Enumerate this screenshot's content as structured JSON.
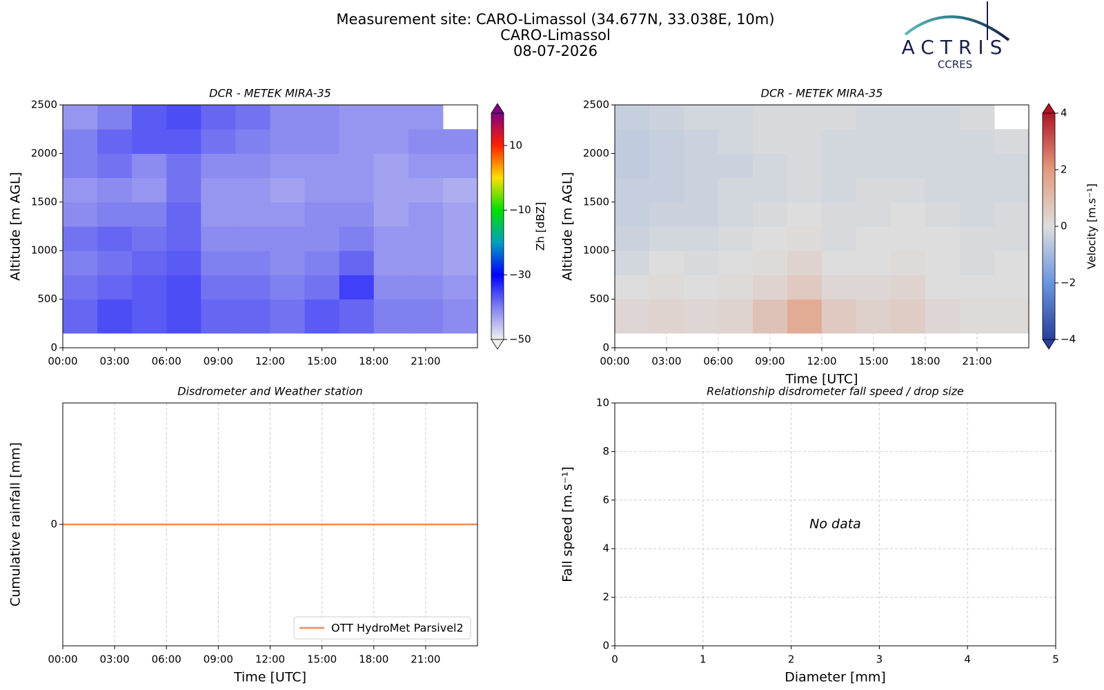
{
  "header": {
    "title": "Measurement site: CARO-Limassol (34.677N, 33.038E, 10m)",
    "site": "CARO-Limassol",
    "date": "08-07-2026"
  },
  "logo": {
    "name": "ACTRIS",
    "subtitle": "CCRES"
  },
  "chart_data": [
    {
      "type": "heatmap",
      "title": "DCR - METEK MIRA-35",
      "y_label": "Altitude [m AGL]",
      "xbins": [
        0,
        2,
        4,
        6,
        8,
        10,
        12,
        14,
        16,
        18,
        20,
        22,
        24
      ],
      "ybins": [
        150,
        500,
        750,
        1000,
        1250,
        1500,
        1750,
        2000,
        2250,
        2500
      ],
      "z": [
        [
          -38,
          -36,
          -37,
          -36,
          -38,
          -38,
          -39,
          -37,
          -38,
          -40,
          -40,
          -41
        ],
        [
          -39,
          -38,
          -37,
          -36,
          -39,
          -39,
          -40,
          -39,
          -35,
          -41,
          -41,
          -42
        ],
        [
          -40,
          -39,
          -38,
          -37,
          -40,
          -40,
          -41,
          -40,
          -38,
          -42,
          -42,
          -43
        ],
        [
          -39,
          -38,
          -39,
          -38,
          -41,
          -41,
          -41,
          -41,
          -40,
          -42,
          -42,
          -43
        ],
        [
          -41,
          -40,
          -40,
          -38,
          -42,
          -42,
          -42,
          -41,
          -41,
          -43,
          -42,
          -43
        ],
        [
          -42,
          -41,
          -42,
          -39,
          -42,
          -42,
          -43,
          -42,
          -42,
          -43,
          -43,
          -44
        ],
        [
          -40,
          -39,
          -41,
          -39,
          -41,
          -41,
          -42,
          -42,
          -42,
          -43,
          -42,
          -42
        ],
        [
          -40,
          -38,
          -37,
          -37,
          -39,
          -40,
          -41,
          -41,
          -42,
          -42,
          -41,
          -41
        ],
        [
          -42,
          -40,
          -37,
          -36,
          -38,
          -39,
          -41,
          -41,
          -42,
          -42,
          -42,
          null
        ]
      ],
      "xlim": [
        0,
        24
      ],
      "ylim": [
        0,
        2500
      ],
      "xticks": [
        {
          "value": 0,
          "label": "00:00"
        },
        {
          "value": 3,
          "label": "03:00"
        },
        {
          "value": 6,
          "label": "06:00"
        },
        {
          "value": 9,
          "label": "09:00"
        },
        {
          "value": 12,
          "label": "12:00"
        },
        {
          "value": 15,
          "label": "15:00"
        },
        {
          "value": 18,
          "label": "18:00"
        },
        {
          "value": 21,
          "label": "21:00"
        }
      ],
      "yticks": [
        0,
        500,
        1000,
        1500,
        2000,
        2500
      ],
      "colorbar_label": "Zh [dBZ]",
      "clim": [
        -50,
        20
      ],
      "colorbar_ticks": [
        {
          "value": -50,
          "label": "−50"
        },
        {
          "value": -30,
          "label": "−30"
        },
        {
          "value": -10,
          "label": "−10"
        },
        10
      ],
      "colorscale": [
        "#f0f0f0",
        "#8080f0",
        "#0000ff",
        "#00a0c0",
        "#00e000",
        "#ffe000",
        "#ff2000",
        "#800080"
      ]
    },
    {
      "type": "heatmap",
      "title": "DCR - METEK MIRA-35",
      "x_label": "Time [UTC]",
      "y_label": "Altitude [m AGL]",
      "xbins": [
        0,
        2,
        4,
        6,
        8,
        10,
        12,
        14,
        16,
        18,
        20,
        22,
        24
      ],
      "ybins": [
        150,
        500,
        750,
        1000,
        1250,
        1500,
        1750,
        2000,
        2250,
        2500
      ],
      "z": [
        [
          0.2,
          0.3,
          0.2,
          0.3,
          0.8,
          1.5,
          0.6,
          0.4,
          0.5,
          0.2,
          0.1,
          0.1
        ],
        [
          0,
          0.1,
          0,
          0.1,
          0.3,
          0.6,
          0.2,
          0.2,
          0.3,
          0,
          0,
          0
        ],
        [
          -0.2,
          0,
          -0.1,
          0,
          0.1,
          0.3,
          0,
          0,
          0.1,
          0,
          -0.1,
          0
        ],
        [
          -0.3,
          -0.2,
          -0.2,
          -0.1,
          0,
          0.1,
          -0.1,
          0,
          0,
          0,
          -0.1,
          -0.1
        ],
        [
          -0.4,
          -0.3,
          -0.3,
          -0.2,
          -0.1,
          0,
          -0.1,
          -0.1,
          0,
          -0.1,
          -0.2,
          -0.1
        ],
        [
          -0.4,
          -0.4,
          -0.3,
          -0.2,
          -0.2,
          -0.1,
          -0.2,
          -0.1,
          -0.1,
          -0.2,
          -0.2,
          -0.2
        ],
        [
          -0.5,
          -0.4,
          -0.3,
          -0.3,
          -0.2,
          -0.1,
          -0.2,
          -0.2,
          -0.2,
          -0.2,
          -0.2,
          -0.2
        ],
        [
          -0.5,
          -0.4,
          -0.3,
          -0.2,
          -0.1,
          -0.1,
          -0.2,
          -0.2,
          -0.2,
          -0.2,
          -0.2,
          -0.1
        ],
        [
          -0.4,
          -0.3,
          -0.2,
          -0.2,
          -0.1,
          -0.1,
          -0.1,
          -0.2,
          -0.2,
          -0.2,
          -0.1,
          null
        ]
      ],
      "xlim": [
        0,
        24
      ],
      "ylim": [
        0,
        2500
      ],
      "xticks": [
        {
          "value": 0,
          "label": "00:00"
        },
        {
          "value": 3,
          "label": "03:00"
        },
        {
          "value": 6,
          "label": "06:00"
        },
        {
          "value": 9,
          "label": "09:00"
        },
        {
          "value": 12,
          "label": "12:00"
        },
        {
          "value": 15,
          "label": "15:00"
        },
        {
          "value": 18,
          "label": "18:00"
        },
        {
          "value": 21,
          "label": "21:00"
        }
      ],
      "yticks": [
        0,
        500,
        1000,
        1500,
        2000,
        2500
      ],
      "grid": true,
      "colorbar_label": "Velocity [m.s⁻¹]",
      "clim": [
        -4,
        4
      ],
      "colorbar_ticks": [
        {
          "value": -4,
          "label": "−4"
        },
        {
          "value": -2,
          "label": "−2"
        },
        0,
        2,
        4
      ],
      "colorscale": [
        "#2a3f9a",
        "#6a95e0",
        "#dddddd",
        "#e39a7e",
        "#b01526"
      ]
    },
    {
      "type": "line",
      "title": "Disdrometer and Weather station",
      "x_label": "Time [UTC]",
      "y_label": "Cumulative rainfall [mm]",
      "series": [
        {
          "name": "OTT HydroMet Parsivel2",
          "color": "#ef8a5a",
          "x": [
            0,
            24
          ],
          "values": [
            0,
            0
          ]
        }
      ],
      "xlim": [
        0,
        24
      ],
      "ylim": [
        -0.055,
        0.055
      ],
      "xticks": [
        {
          "value": 0,
          "label": "00:00"
        },
        {
          "value": 3,
          "label": "03:00"
        },
        {
          "value": 6,
          "label": "06:00"
        },
        {
          "value": 9,
          "label": "09:00"
        },
        {
          "value": 12,
          "label": "12:00"
        },
        {
          "value": 15,
          "label": "15:00"
        },
        {
          "value": 18,
          "label": "18:00"
        },
        {
          "value": 21,
          "label": "21:00"
        }
      ],
      "yticks": [
        0
      ],
      "grid": true,
      "legend": "lower right"
    },
    {
      "type": "scatter",
      "title": "Relationship disdrometer fall speed / drop size",
      "x_label": "Diameter [mm]",
      "y_label": "Fall speed [m.s⁻¹]",
      "annotation": "No data",
      "xlim": [
        0,
        5
      ],
      "ylim": [
        0,
        10
      ],
      "xticks": [
        0,
        1,
        2,
        3,
        4,
        5
      ],
      "yticks": [
        0,
        2,
        4,
        6,
        8,
        10
      ],
      "grid": true
    }
  ]
}
